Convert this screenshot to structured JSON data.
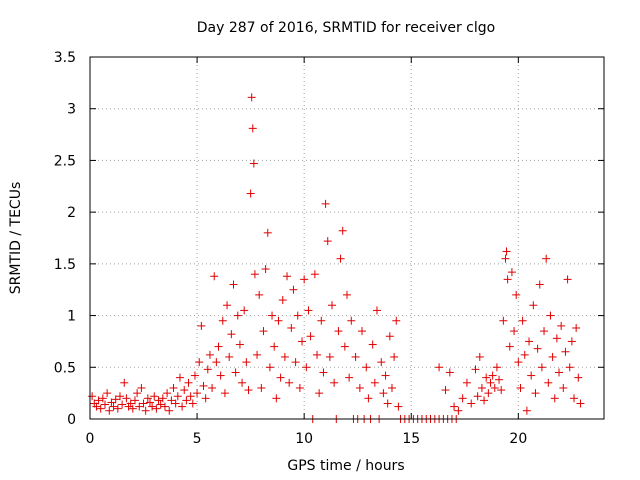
{
  "chart_data": {
    "type": "scatter",
    "title": "Day 287 of 2016, SRMTID for receiver clgo",
    "xlabel": "GPS time / hours",
    "ylabel": "SRMTID / TECUs",
    "xlim": [
      0,
      24
    ],
    "ylim": [
      0,
      3.5
    ],
    "xticks": [
      "0",
      "5",
      "10",
      "15",
      "20"
    ],
    "yticks": [
      "0",
      "0.5",
      "1",
      "1.5",
      "2",
      "2.5",
      "3",
      "3.5"
    ],
    "xtick_values": [
      0,
      5,
      10,
      15,
      20
    ],
    "ytick_values": [
      0,
      0.5,
      1,
      1.5,
      2,
      2.5,
      3,
      3.5
    ],
    "grid": true,
    "marker": "+",
    "color": "#e00000",
    "series": [
      {
        "name": "SRMTID",
        "points": [
          [
            0.1,
            0.22
          ],
          [
            0.2,
            0.15
          ],
          [
            0.3,
            0.12
          ],
          [
            0.4,
            0.18
          ],
          [
            0.5,
            0.1
          ],
          [
            0.6,
            0.2
          ],
          [
            0.7,
            0.14
          ],
          [
            0.8,
            0.25
          ],
          [
            0.9,
            0.08
          ],
          [
            1.0,
            0.16
          ],
          [
            1.1,
            0.12
          ],
          [
            1.2,
            0.19
          ],
          [
            1.3,
            0.1
          ],
          [
            1.4,
            0.22
          ],
          [
            1.5,
            0.14
          ],
          [
            1.6,
            0.35
          ],
          [
            1.7,
            0.2
          ],
          [
            1.8,
            0.12
          ],
          [
            1.9,
            0.15
          ],
          [
            2.0,
            0.1
          ],
          [
            2.1,
            0.18
          ],
          [
            2.2,
            0.25
          ],
          [
            2.3,
            0.12
          ],
          [
            2.4,
            0.3
          ],
          [
            2.5,
            0.15
          ],
          [
            2.6,
            0.08
          ],
          [
            2.7,
            0.2
          ],
          [
            2.8,
            0.16
          ],
          [
            2.9,
            0.12
          ],
          [
            3.0,
            0.22
          ],
          [
            3.1,
            0.1
          ],
          [
            3.2,
            0.18
          ],
          [
            3.3,
            0.14
          ],
          [
            3.4,
            0.2
          ],
          [
            3.5,
            0.12
          ],
          [
            3.6,
            0.25
          ],
          [
            3.7,
            0.08
          ],
          [
            3.8,
            0.18
          ],
          [
            3.9,
            0.3
          ],
          [
            4.0,
            0.15
          ],
          [
            4.1,
            0.22
          ],
          [
            4.2,
            0.4
          ],
          [
            4.3,
            0.12
          ],
          [
            4.4,
            0.28
          ],
          [
            4.5,
            0.18
          ],
          [
            4.6,
            0.35
          ],
          [
            4.7,
            0.22
          ],
          [
            4.8,
            0.15
          ],
          [
            4.9,
            0.42
          ],
          [
            5.0,
            0.25
          ],
          [
            5.1,
            0.55
          ],
          [
            5.2,
            0.9
          ],
          [
            5.3,
            0.32
          ],
          [
            5.4,
            0.2
          ],
          [
            5.5,
            0.48
          ],
          [
            5.6,
            0.62
          ],
          [
            5.7,
            0.3
          ],
          [
            5.8,
            1.38
          ],
          [
            5.9,
            0.55
          ],
          [
            6.0,
            0.7
          ],
          [
            6.1,
            0.42
          ],
          [
            6.2,
            0.95
          ],
          [
            6.3,
            0.25
          ],
          [
            6.4,
            1.1
          ],
          [
            6.5,
            0.6
          ],
          [
            6.6,
            0.82
          ],
          [
            6.7,
            1.3
          ],
          [
            6.8,
            0.45
          ],
          [
            6.9,
            1.0
          ],
          [
            7.0,
            0.72
          ],
          [
            7.1,
            0.35
          ],
          [
            7.2,
            1.05
          ],
          [
            7.3,
            0.55
          ],
          [
            7.4,
            0.28
          ],
          [
            7.5,
            2.18
          ],
          [
            7.55,
            3.11
          ],
          [
            7.6,
            2.81
          ],
          [
            7.65,
            2.47
          ],
          [
            7.7,
            1.4
          ],
          [
            7.8,
            0.62
          ],
          [
            7.9,
            1.2
          ],
          [
            8.0,
            0.3
          ],
          [
            8.1,
            0.85
          ],
          [
            8.2,
            1.45
          ],
          [
            8.3,
            1.8
          ],
          [
            8.4,
            0.5
          ],
          [
            8.5,
            1.0
          ],
          [
            8.6,
            0.7
          ],
          [
            8.7,
            0.2
          ],
          [
            8.8,
            0.95
          ],
          [
            8.9,
            0.4
          ],
          [
            9.0,
            1.15
          ],
          [
            9.1,
            0.6
          ],
          [
            9.2,
            1.38
          ],
          [
            9.3,
            0.35
          ],
          [
            9.4,
            0.88
          ],
          [
            9.5,
            1.25
          ],
          [
            9.6,
            0.55
          ],
          [
            9.7,
            1.0
          ],
          [
            9.8,
            0.3
          ],
          [
            9.9,
            0.75
          ],
          [
            10.0,
            1.35
          ],
          [
            10.1,
            0.5
          ],
          [
            10.2,
            1.05
          ],
          [
            10.3,
            0.8
          ],
          [
            10.4,
            0.0
          ],
          [
            10.5,
            1.4
          ],
          [
            10.6,
            0.62
          ],
          [
            10.7,
            0.25
          ],
          [
            10.8,
            0.95
          ],
          [
            10.9,
            0.45
          ],
          [
            11.0,
            2.08
          ],
          [
            11.1,
            1.72
          ],
          [
            11.2,
            0.6
          ],
          [
            11.3,
            1.1
          ],
          [
            11.4,
            0.35
          ],
          [
            11.5,
            0.0
          ],
          [
            11.6,
            0.85
          ],
          [
            11.7,
            1.55
          ],
          [
            11.8,
            1.82
          ],
          [
            11.9,
            0.7
          ],
          [
            12.0,
            1.2
          ],
          [
            12.1,
            0.4
          ],
          [
            12.2,
            0.95
          ],
          [
            12.3,
            0.0
          ],
          [
            12.4,
            0.6
          ],
          [
            12.5,
            0.0
          ],
          [
            12.6,
            0.3
          ],
          [
            12.7,
            0.85
          ],
          [
            12.8,
            0.0
          ],
          [
            12.9,
            0.5
          ],
          [
            13.0,
            0.2
          ],
          [
            13.1,
            0.0
          ],
          [
            13.2,
            0.72
          ],
          [
            13.3,
            0.35
          ],
          [
            13.4,
            1.05
          ],
          [
            13.5,
            0.0
          ],
          [
            13.6,
            0.55
          ],
          [
            13.7,
            0.25
          ],
          [
            13.8,
            0.42
          ],
          [
            13.9,
            0.15
          ],
          [
            14.0,
            0.8
          ],
          [
            14.1,
            0.3
          ],
          [
            14.2,
            0.6
          ],
          [
            14.3,
            0.95
          ],
          [
            14.4,
            0.12
          ],
          [
            14.5,
            0.0
          ],
          [
            14.7,
            0.0
          ],
          [
            14.9,
            0.0
          ],
          [
            15.1,
            0.0
          ],
          [
            15.3,
            0.0
          ],
          [
            15.5,
            0.0
          ],
          [
            15.7,
            0.0
          ],
          [
            15.9,
            0.0
          ],
          [
            16.1,
            0.0
          ],
          [
            16.3,
            0.0
          ],
          [
            16.5,
            0.0
          ],
          [
            16.7,
            0.0
          ],
          [
            16.9,
            0.0
          ],
          [
            17.1,
            0.0
          ],
          [
            16.3,
            0.5
          ],
          [
            16.6,
            0.28
          ],
          [
            16.8,
            0.45
          ],
          [
            17.0,
            0.12
          ],
          [
            17.2,
            0.08
          ],
          [
            17.4,
            0.2
          ],
          [
            17.6,
            0.35
          ],
          [
            17.8,
            0.15
          ],
          [
            18.0,
            0.48
          ],
          [
            18.1,
            0.22
          ],
          [
            18.2,
            0.6
          ],
          [
            18.3,
            0.3
          ],
          [
            18.4,
            0.18
          ],
          [
            18.5,
            0.4
          ],
          [
            18.6,
            0.25
          ],
          [
            18.7,
            0.35
          ],
          [
            18.8,
            0.42
          ],
          [
            18.9,
            0.3
          ],
          [
            19.0,
            0.5
          ],
          [
            19.1,
            0.38
          ],
          [
            19.2,
            0.28
          ],
          [
            19.3,
            0.95
          ],
          [
            19.4,
            1.55
          ],
          [
            19.45,
            1.62
          ],
          [
            19.5,
            1.35
          ],
          [
            19.6,
            0.7
          ],
          [
            19.7,
            1.42
          ],
          [
            19.8,
            0.85
          ],
          [
            19.9,
            1.2
          ],
          [
            20.0,
            0.55
          ],
          [
            20.1,
            0.3
          ],
          [
            20.2,
            0.95
          ],
          [
            20.3,
            0.62
          ],
          [
            20.4,
            0.08
          ],
          [
            20.5,
            0.75
          ],
          [
            20.6,
            0.42
          ],
          [
            20.7,
            1.1
          ],
          [
            20.8,
            0.25
          ],
          [
            20.9,
            0.68
          ],
          [
            21.0,
            1.3
          ],
          [
            21.1,
            0.5
          ],
          [
            21.2,
            0.85
          ],
          [
            21.3,
            1.55
          ],
          [
            21.4,
            0.35
          ],
          [
            21.5,
            1.0
          ],
          [
            21.6,
            0.6
          ],
          [
            21.7,
            0.2
          ],
          [
            21.8,
            0.78
          ],
          [
            21.9,
            0.45
          ],
          [
            22.0,
            0.9
          ],
          [
            22.1,
            0.3
          ],
          [
            22.2,
            0.65
          ],
          [
            22.3,
            1.35
          ],
          [
            22.4,
            0.5
          ],
          [
            22.5,
            0.75
          ],
          [
            22.6,
            0.2
          ],
          [
            22.7,
            0.88
          ],
          [
            22.8,
            0.4
          ],
          [
            22.9,
            0.15
          ]
        ]
      }
    ]
  }
}
